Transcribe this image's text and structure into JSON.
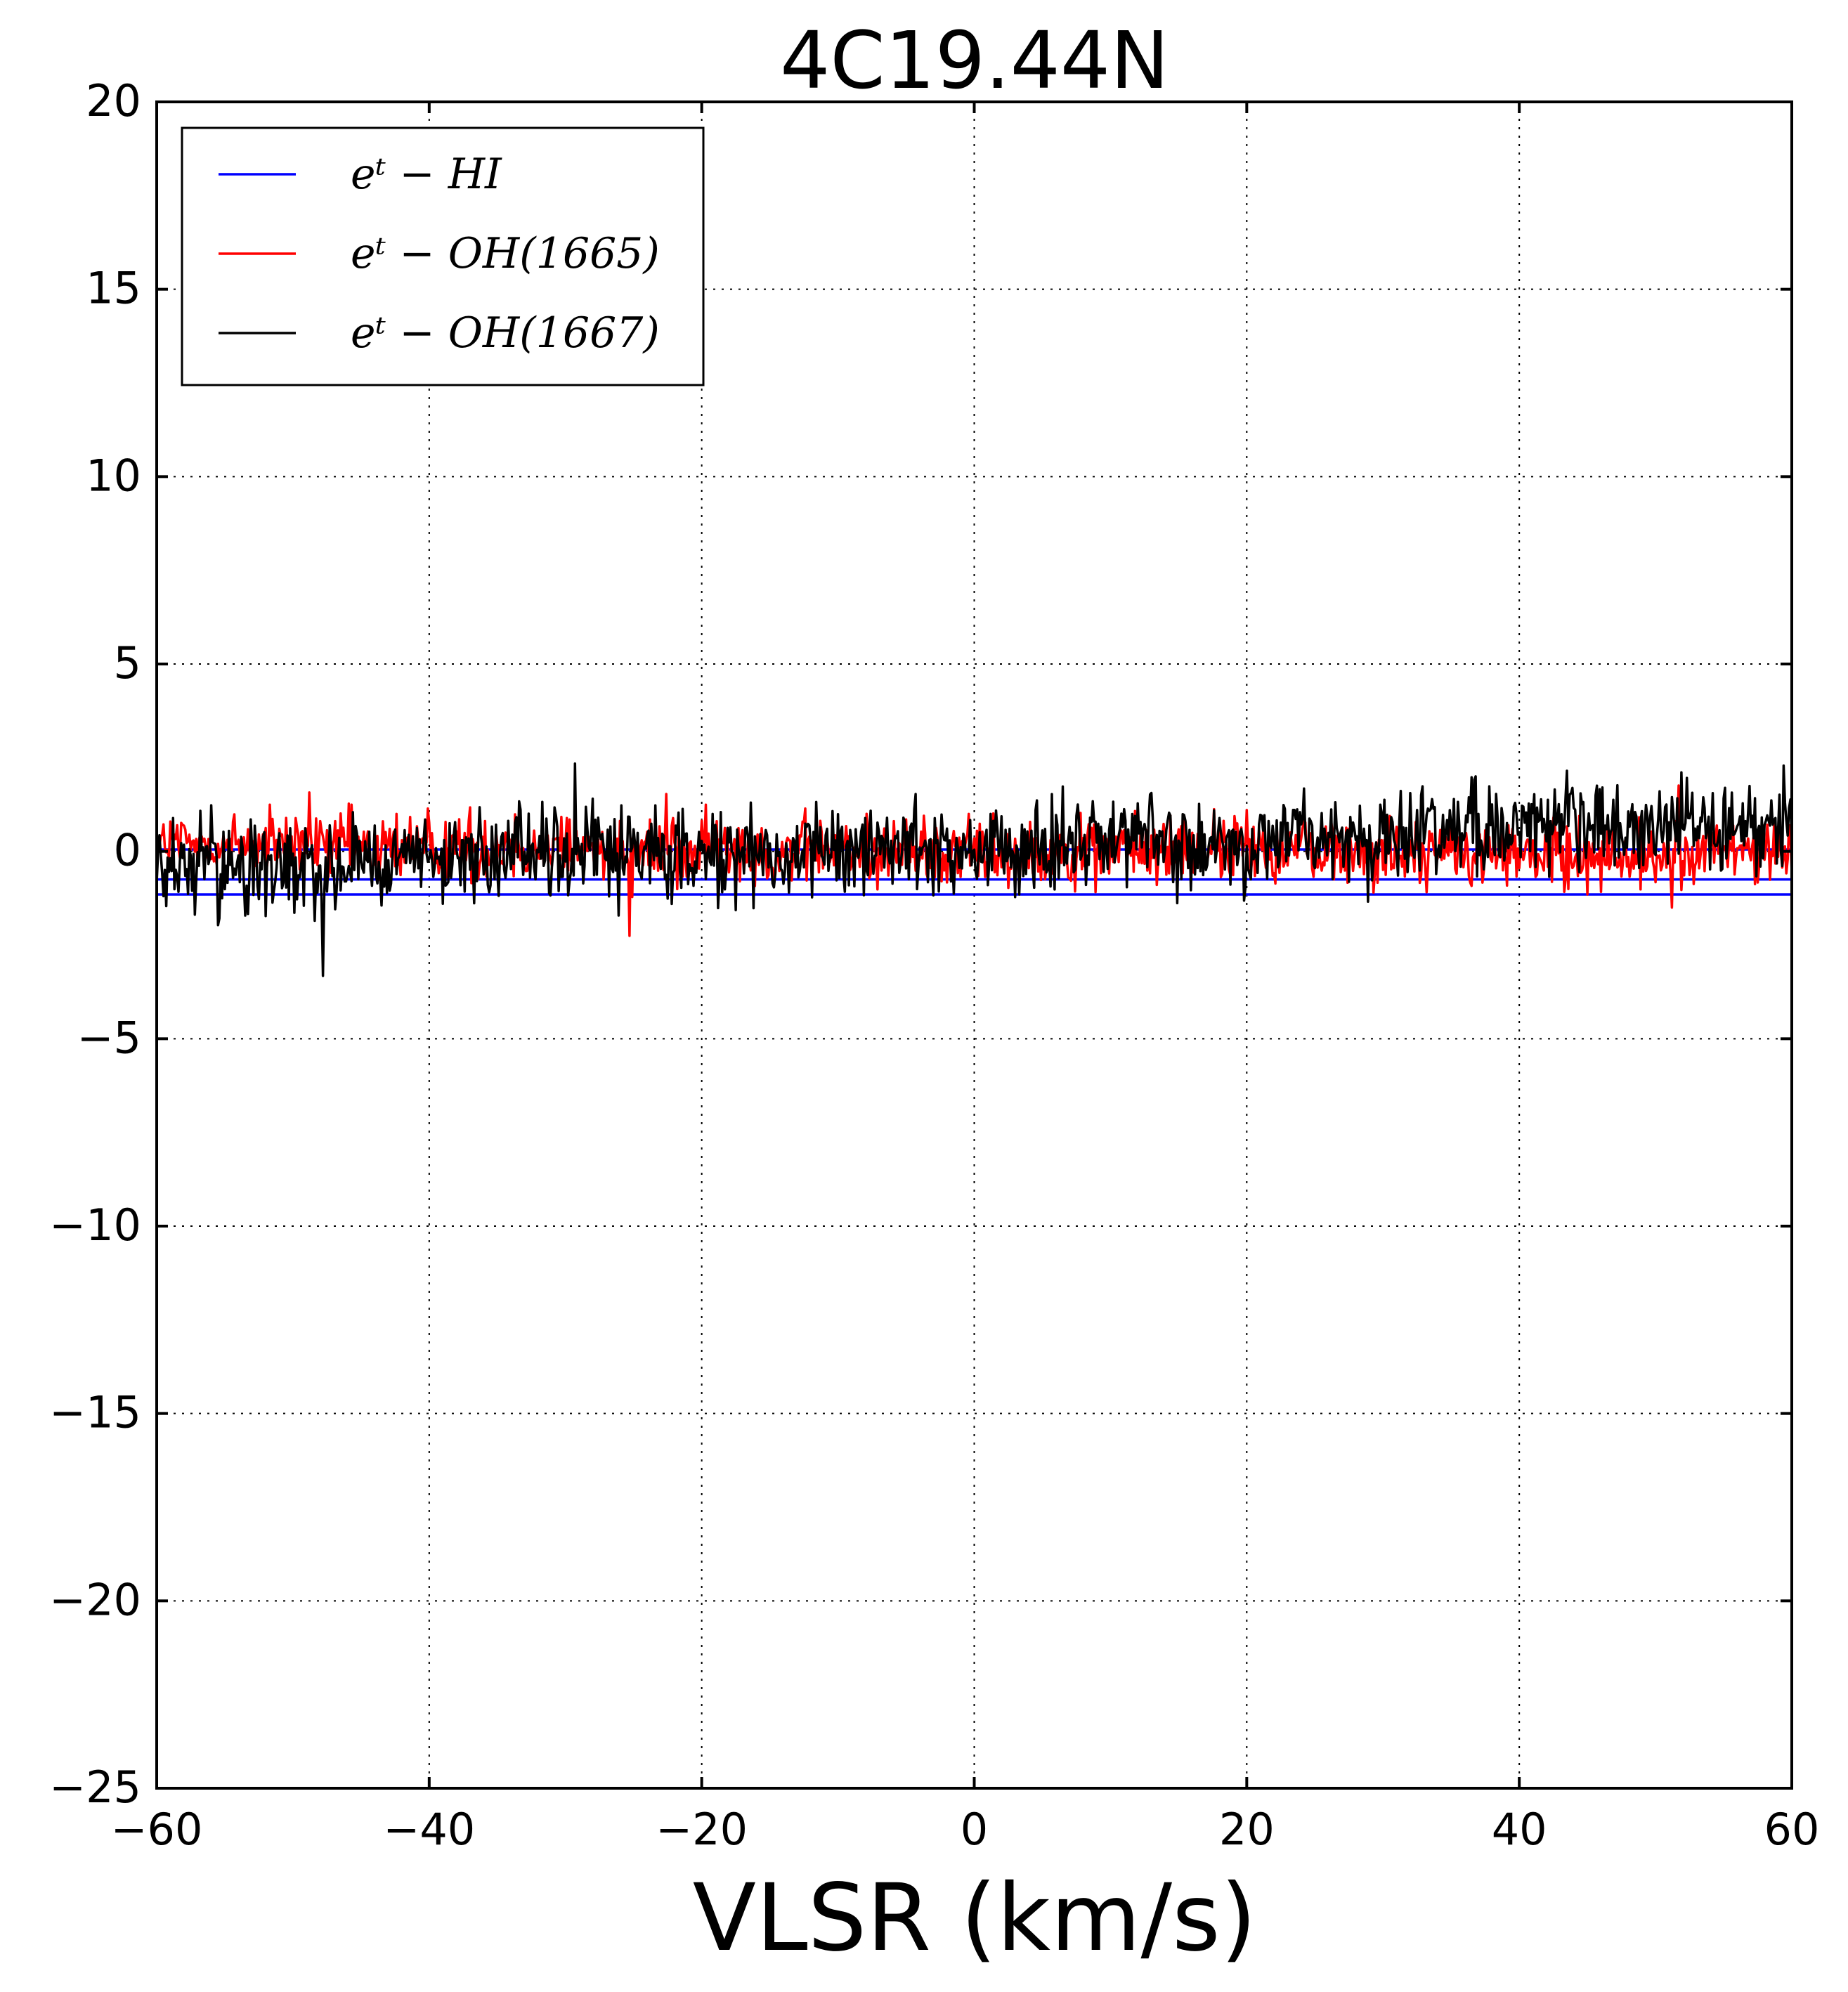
{
  "chart_data": {
    "type": "line",
    "title": "4C19.44N",
    "xlabel": "VLSR (km/s)",
    "ylabel": "",
    "xlim": [
      -60,
      60
    ],
    "ylim": [
      -25,
      20
    ],
    "xticks": [
      -60,
      -40,
      -20,
      0,
      20,
      40,
      60
    ],
    "yticks": [
      20,
      15,
      10,
      5,
      0,
      -5,
      -10,
      -15,
      -20,
      -25
    ],
    "xtick_labels": [
      "−60",
      "−40",
      "−20",
      "0",
      "20",
      "40",
      "60"
    ],
    "ytick_labels": [
      "20",
      "15",
      "10",
      "5",
      "0",
      "−5",
      "−10",
      "−15",
      "−20",
      "−25"
    ],
    "grid": true,
    "legend_position": "upper-left",
    "series": [
      {
        "name": "eᵗ − HI",
        "color": "#0000ff",
        "x": [
          -60,
          -30,
          0,
          30,
          60
        ],
        "y": [
          0.05,
          0.05,
          0.05,
          0.05,
          0.05
        ],
        "band": [
          -0.75,
          -1.15
        ]
      },
      {
        "name": "eᵗ − OH(1665)",
        "color": "#ff0000",
        "x": [
          -60,
          -50,
          -40,
          -30,
          -20,
          -10,
          0,
          10,
          20,
          30,
          40,
          50,
          60
        ],
        "y": [
          0.2,
          0.15,
          0.1,
          0.15,
          0.05,
          0.05,
          0.0,
          0.05,
          0.1,
          0.0,
          -0.1,
          -0.15,
          0.1
        ]
      },
      {
        "name": "eᵗ − OH(1667)",
        "color": "#000000",
        "x": [
          -60,
          -50,
          -40,
          -30,
          -20,
          -10,
          0,
          10,
          20,
          30,
          40,
          50,
          60
        ],
        "y": [
          -0.4,
          -0.3,
          -0.2,
          -0.1,
          -0.1,
          0.0,
          0.1,
          0.2,
          0.2,
          0.3,
          0.5,
          0.6,
          0.8
        ]
      }
    ]
  }
}
